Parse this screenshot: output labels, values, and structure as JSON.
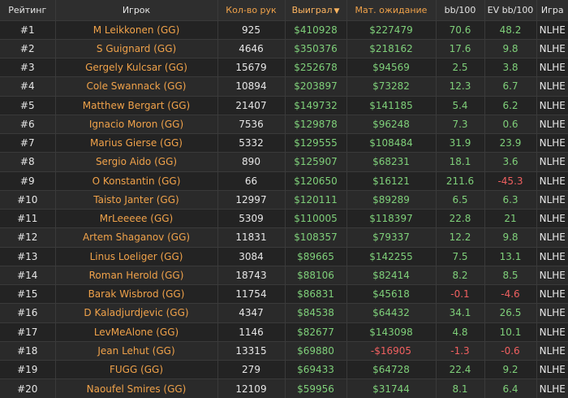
{
  "columns": {
    "rank": "Рейтинг",
    "player": "Игрок",
    "hands": "Кол-во рук",
    "won": "Выиграл",
    "ev": "Мат. ожидание",
    "bb100": "bb/100",
    "evbb100": "EV bb/100",
    "game": "Игра",
    "sort_arrow": "▼"
  },
  "rows": [
    {
      "rank": "#1",
      "player": "M Leikkonen (GG)",
      "hands": "925",
      "won": "$410928",
      "ev": "$227479",
      "bb100": "70.6",
      "evbb100": "48.2",
      "game": "NLHE"
    },
    {
      "rank": "#2",
      "player": "S Guignard (GG)",
      "hands": "4646",
      "won": "$350376",
      "ev": "$218162",
      "bb100": "17.6",
      "evbb100": "9.8",
      "game": "NLHE"
    },
    {
      "rank": "#3",
      "player": "Gergely Kulcsar (GG)",
      "hands": "15679",
      "won": "$252678",
      "ev": "$94569",
      "bb100": "2.5",
      "evbb100": "3.8",
      "game": "NLHE"
    },
    {
      "rank": "#4",
      "player": "Cole Swannack (GG)",
      "hands": "10894",
      "won": "$203897",
      "ev": "$73282",
      "bb100": "12.3",
      "evbb100": "6.7",
      "game": "NLHE"
    },
    {
      "rank": "#5",
      "player": "Matthew Bergart (GG)",
      "hands": "21407",
      "won": "$149732",
      "ev": "$141185",
      "bb100": "5.4",
      "evbb100": "6.2",
      "game": "NLHE"
    },
    {
      "rank": "#6",
      "player": "Ignacio Moron (GG)",
      "hands": "7536",
      "won": "$129878",
      "ev": "$96248",
      "bb100": "7.3",
      "evbb100": "0.6",
      "game": "NLHE"
    },
    {
      "rank": "#7",
      "player": "Marius Gierse (GG)",
      "hands": "5332",
      "won": "$129555",
      "ev": "$108484",
      "bb100": "31.9",
      "evbb100": "23.9",
      "game": "NLHE"
    },
    {
      "rank": "#8",
      "player": "Sergio Aido (GG)",
      "hands": "890",
      "won": "$125907",
      "ev": "$68231",
      "bb100": "18.1",
      "evbb100": "3.6",
      "game": "NLHE"
    },
    {
      "rank": "#9",
      "player": "O Konstantin (GG)",
      "hands": "66",
      "won": "$120650",
      "ev": "$16121",
      "bb100": "211.6",
      "evbb100": "-45.3",
      "game": "NLHE"
    },
    {
      "rank": "#10",
      "player": "Taisto Janter (GG)",
      "hands": "12997",
      "won": "$120111",
      "ev": "$89289",
      "bb100": "6.5",
      "evbb100": "6.3",
      "game": "NLHE"
    },
    {
      "rank": "#11",
      "player": "MrLeeeee (GG)",
      "hands": "5309",
      "won": "$110005",
      "ev": "$118397",
      "bb100": "22.8",
      "evbb100": "21",
      "game": "NLHE"
    },
    {
      "rank": "#12",
      "player": "Artem Shaganov (GG)",
      "hands": "11831",
      "won": "$108357",
      "ev": "$79337",
      "bb100": "12.2",
      "evbb100": "9.8",
      "game": "NLHE"
    },
    {
      "rank": "#13",
      "player": "Linus Loeliger (GG)",
      "hands": "3084",
      "won": "$89665",
      "ev": "$142255",
      "bb100": "7.5",
      "evbb100": "13.1",
      "game": "NLHE"
    },
    {
      "rank": "#14",
      "player": "Roman Herold (GG)",
      "hands": "18743",
      "won": "$88106",
      "ev": "$82414",
      "bb100": "8.2",
      "evbb100": "8.5",
      "game": "NLHE"
    },
    {
      "rank": "#15",
      "player": "Barak Wisbrod (GG)",
      "hands": "11754",
      "won": "$86831",
      "ev": "$45618",
      "bb100": "-0.1",
      "evbb100": "-4.6",
      "game": "NLHE"
    },
    {
      "rank": "#16",
      "player": "D Kaladjurdjevic (GG)",
      "hands": "4347",
      "won": "$84538",
      "ev": "$64432",
      "bb100": "34.1",
      "evbb100": "26.5",
      "game": "NLHE"
    },
    {
      "rank": "#17",
      "player": "LevMeAlone (GG)",
      "hands": "1146",
      "won": "$82677",
      "ev": "$143098",
      "bb100": "4.8",
      "evbb100": "10.1",
      "game": "NLHE"
    },
    {
      "rank": "#18",
      "player": "Jean Lehut (GG)",
      "hands": "13315",
      "won": "$69880",
      "ev": "-$16905",
      "bb100": "-1.3",
      "evbb100": "-0.6",
      "game": "NLHE"
    },
    {
      "rank": "#19",
      "player": "FUGG (GG)",
      "hands": "279",
      "won": "$69433",
      "ev": "$64728",
      "bb100": "22.4",
      "evbb100": "9.2",
      "game": "NLHE"
    },
    {
      "rank": "#20",
      "player": "Naoufel Smires (GG)",
      "hands": "12109",
      "won": "$59956",
      "ev": "$31744",
      "bb100": "8.1",
      "evbb100": "6.4",
      "game": "NLHE"
    }
  ]
}
